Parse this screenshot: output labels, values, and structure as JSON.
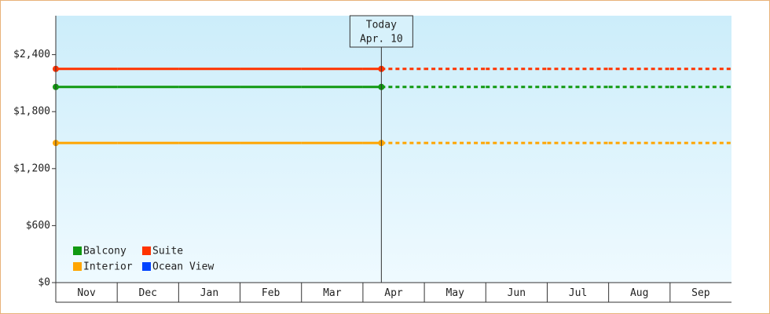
{
  "chart_data": {
    "type": "line",
    "categories": [
      "Nov",
      "Dec",
      "Jan",
      "Feb",
      "Mar",
      "Apr",
      "May",
      "Jun",
      "Jul",
      "Aug",
      "Sep"
    ],
    "today": {
      "label": "Today",
      "date": "Apr. 10"
    },
    "series": [
      {
        "name": "Balcony",
        "color": "#119911",
        "values": [
          2060,
          2060,
          2060,
          2060,
          2060,
          2060,
          2060,
          2060,
          2060,
          2060,
          2060
        ]
      },
      {
        "name": "Suite",
        "color": "#ff3300",
        "values": [
          2250,
          2250,
          2250,
          2250,
          2250,
          2250,
          2250,
          2250,
          2250,
          2250,
          2250
        ]
      },
      {
        "name": "Interior",
        "color": "#ffa500",
        "values": [
          1470,
          1470,
          1470,
          1470,
          1470,
          1470,
          1470,
          1470,
          1470,
          1470,
          1470
        ]
      },
      {
        "name": "Ocean View",
        "color": "#0044ff",
        "values": [
          null,
          null,
          null,
          null,
          null,
          null,
          null,
          null,
          null,
          null,
          null
        ]
      }
    ],
    "ylim": [
      0,
      2810
    ],
    "yticks": [
      {
        "value": 0,
        "label": "$0"
      },
      {
        "value": 600,
        "label": "$600"
      },
      {
        "value": 1200,
        "label": "$1,200"
      },
      {
        "value": 1800,
        "label": "$1,800"
      },
      {
        "value": 2400,
        "label": "$2,400"
      }
    ]
  }
}
